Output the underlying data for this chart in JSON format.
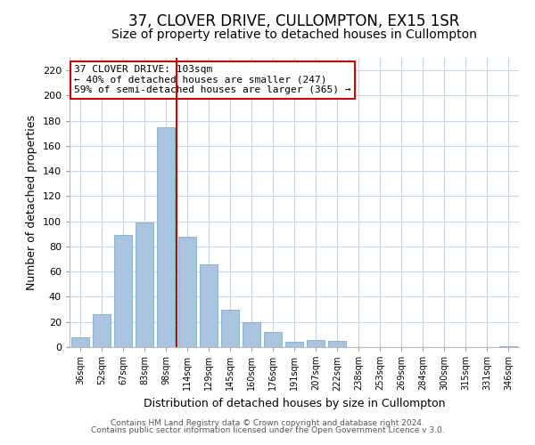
{
  "title": "37, CLOVER DRIVE, CULLOMPTON, EX15 1SR",
  "subtitle": "Size of property relative to detached houses in Cullompton",
  "xlabel": "Distribution of detached houses by size in Cullompton",
  "ylabel": "Number of detached properties",
  "bar_labels": [
    "36sqm",
    "52sqm",
    "67sqm",
    "83sqm",
    "98sqm",
    "114sqm",
    "129sqm",
    "145sqm",
    "160sqm",
    "176sqm",
    "191sqm",
    "207sqm",
    "222sqm",
    "238sqm",
    "253sqm",
    "269sqm",
    "284sqm",
    "300sqm",
    "315sqm",
    "331sqm",
    "346sqm"
  ],
  "bar_values": [
    8,
    26,
    89,
    99,
    175,
    88,
    66,
    30,
    20,
    12,
    4,
    6,
    5,
    0,
    0,
    0,
    0,
    0,
    0,
    0,
    1
  ],
  "bar_color": "#aac4df",
  "bar_edge_color": "#7aadd4",
  "vline_x_index": 4.5,
  "vline_color": "#cc0000",
  "ylim": [
    0,
    230
  ],
  "yticks": [
    0,
    20,
    40,
    60,
    80,
    100,
    120,
    140,
    160,
    180,
    200,
    220
  ],
  "annotation_title": "37 CLOVER DRIVE: 103sqm",
  "annotation_line1": "← 40% of detached houses are smaller (247)",
  "annotation_line2": "59% of semi-detached houses are larger (365) →",
  "annotation_box_color": "#ffffff",
  "annotation_border_color": "#cc0000",
  "footer_line1": "Contains HM Land Registry data © Crown copyright and database right 2024.",
  "footer_line2": "Contains public sector information licensed under the Open Government Licence v 3.0.",
  "background_color": "#ffffff",
  "grid_color": "#c8d8ea",
  "title_fontsize": 12,
  "subtitle_fontsize": 10
}
